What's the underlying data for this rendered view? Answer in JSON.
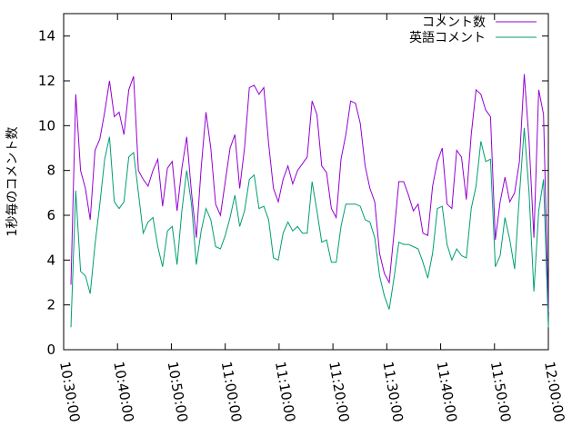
{
  "chart_data": {
    "type": "line",
    "title": "",
    "xlabel": "",
    "ylabel": "1秒毎のコメント数",
    "xlim": [
      "10:30:00",
      "12:00:00"
    ],
    "ylim": [
      0,
      15
    ],
    "x_ticks": [
      "10:30:00",
      "10:40:00",
      "10:50:00",
      "11:00:00",
      "11:10:00",
      "11:20:00",
      "11:30:00",
      "11:40:00",
      "11:50:00",
      "12:00:00"
    ],
    "y_ticks": [
      0,
      2,
      4,
      6,
      8,
      10,
      12,
      14
    ],
    "grid": false,
    "legend_position": "top-right",
    "x_interval_minutes": 1,
    "series": [
      {
        "name": "コメント数",
        "color": "#9400d3",
        "values": [
          2.9,
          11.4,
          8.0,
          7.2,
          5.8,
          8.9,
          9.4,
          10.6,
          12.0,
          10.4,
          10.6,
          9.6,
          11.6,
          12.2,
          8.0,
          7.6,
          7.3,
          8.0,
          8.5,
          6.4,
          8.1,
          8.4,
          6.2,
          8.1,
          9.5,
          7.0,
          5.0,
          8.1,
          10.6,
          9.0,
          6.5,
          6.0,
          7.5,
          9.0,
          9.6,
          7.2,
          9.0,
          11.7,
          11.8,
          11.4,
          11.7,
          9.2,
          7.2,
          6.6,
          7.6,
          8.2,
          7.4,
          8.0,
          8.3,
          8.6,
          11.1,
          10.5,
          8.2,
          7.9,
          6.3,
          5.9,
          8.5,
          9.6,
          11.1,
          11.0,
          10.1,
          8.2,
          7.2,
          6.6,
          4.3,
          3.4,
          3.0,
          5.2,
          7.5,
          7.5,
          6.9,
          6.2,
          6.5,
          5.2,
          5.1,
          7.3,
          8.4,
          9.0,
          6.5,
          6.3,
          8.9,
          8.6,
          6.7,
          9.6,
          11.6,
          11.4,
          10.7,
          10.4,
          4.9,
          6.6,
          7.7,
          6.6,
          7.0,
          8.4,
          12.3,
          9.3,
          5.0,
          11.6,
          10.5,
          1.7
        ]
      },
      {
        "name": "英語コメント",
        "color": "#009e73",
        "values": [
          1.0,
          7.1,
          3.5,
          3.3,
          2.5,
          4.7,
          6.5,
          8.5,
          9.5,
          6.6,
          6.3,
          6.6,
          8.6,
          8.8,
          7.0,
          5.2,
          5.7,
          5.9,
          4.6,
          3.7,
          5.3,
          5.5,
          3.8,
          6.2,
          8.0,
          6.5,
          3.8,
          5.3,
          6.3,
          5.8,
          4.6,
          4.5,
          5.1,
          5.9,
          6.9,
          5.5,
          6.2,
          7.6,
          7.8,
          6.3,
          6.4,
          5.8,
          4.1,
          4.0,
          5.2,
          5.7,
          5.3,
          5.5,
          5.2,
          5.2,
          7.5,
          6.2,
          4.8,
          4.9,
          3.9,
          3.9,
          5.5,
          6.5,
          6.5,
          6.5,
          6.4,
          5.8,
          5.7,
          5.0,
          3.3,
          2.4,
          1.8,
          3.2,
          4.8,
          4.7,
          4.7,
          4.6,
          4.5,
          3.9,
          3.2,
          4.3,
          6.3,
          6.4,
          4.7,
          4.0,
          4.5,
          4.2,
          4.1,
          6.3,
          7.3,
          9.3,
          8.4,
          8.5,
          3.7,
          4.2,
          5.9,
          4.9,
          3.6,
          6.9,
          9.9,
          7.0,
          2.6,
          6.2,
          7.6,
          1.0
        ]
      }
    ]
  }
}
